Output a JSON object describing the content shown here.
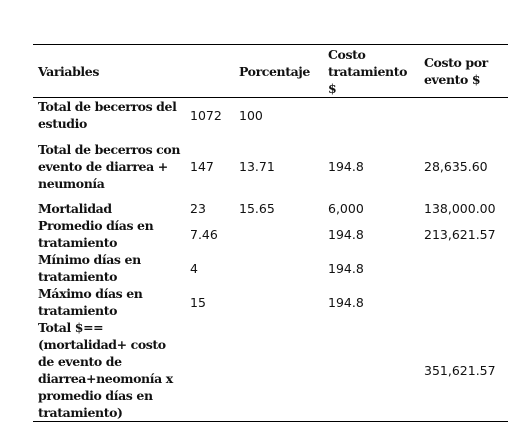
{
  "table": {
    "header": [
      "Variables",
      null,
      "Porcentaje",
      "Costo tratamiento $",
      "Costo por evento $"
    ],
    "rows": [
      [
        "Total de becerros del estudio",
        "1072",
        "100",
        null,
        null
      ],
      [
        "Total de becerros con evento de diarrea + neumonía",
        "147",
        "13.71",
        "194.8",
        "28,635.60"
      ],
      [
        "Mortalidad",
        "23",
        "15.65",
        "6,000",
        "138,000.00"
      ],
      [
        "Promedio días en tratamiento",
        "7.46",
        null,
        "194.8",
        "213,621.57"
      ],
      [
        "Mínimo días en tratamiento",
        "4",
        null,
        "194.8",
        null
      ],
      [
        "Máximo días en tratamiento",
        "15",
        null,
        "194.8",
        null
      ],
      [
        "Total $== (mortalidad+ costo de evento de diarrea+neomonía x promedio días en tratamiento)",
        null,
        null,
        null,
        "351,621.57"
      ]
    ]
  }
}
